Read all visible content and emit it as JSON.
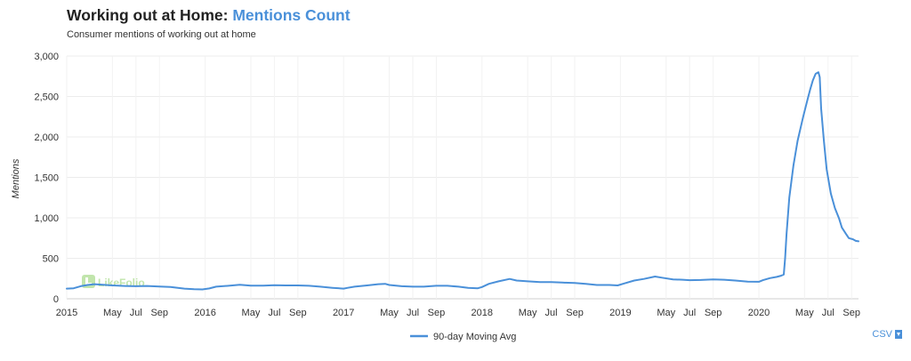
{
  "header": {
    "title_prefix": "Working out at Home: ",
    "title_accent": "Mentions Count",
    "subtitle": "Consumer mentions of working out at home"
  },
  "download": {
    "label": "CSV",
    "icon": "download-icon"
  },
  "watermark": {
    "text": "LikeFolio",
    "color": "#8fd16a"
  },
  "chart_data": {
    "type": "line",
    "ylabel": "Mentions",
    "xlabel": "",
    "ylim": [
      0,
      3000
    ],
    "yticks": [
      0,
      500,
      1000,
      1500,
      2000,
      2500,
      3000
    ],
    "ytick_labels": [
      "0",
      "500",
      "1,000",
      "1,500",
      "2,000",
      "2,500",
      "3,000"
    ],
    "xlim": [
      2015.0,
      2020.72
    ],
    "xticks": [
      {
        "x": 2015.0,
        "label": "2015"
      },
      {
        "x": 2015.33,
        "label": "May"
      },
      {
        "x": 2015.5,
        "label": "Jul"
      },
      {
        "x": 2015.67,
        "label": "Sep"
      },
      {
        "x": 2016.0,
        "label": "2016"
      },
      {
        "x": 2016.33,
        "label": "May"
      },
      {
        "x": 2016.5,
        "label": "Jul"
      },
      {
        "x": 2016.67,
        "label": "Sep"
      },
      {
        "x": 2017.0,
        "label": "2017"
      },
      {
        "x": 2017.33,
        "label": "May"
      },
      {
        "x": 2017.5,
        "label": "Jul"
      },
      {
        "x": 2017.67,
        "label": "Sep"
      },
      {
        "x": 2018.0,
        "label": "2018"
      },
      {
        "x": 2018.33,
        "label": "May"
      },
      {
        "x": 2018.5,
        "label": "Jul"
      },
      {
        "x": 2018.67,
        "label": "Sep"
      },
      {
        "x": 2019.0,
        "label": "2019"
      },
      {
        "x": 2019.33,
        "label": "May"
      },
      {
        "x": 2019.5,
        "label": "Jul"
      },
      {
        "x": 2019.67,
        "label": "Sep"
      },
      {
        "x": 2020.0,
        "label": "2020"
      },
      {
        "x": 2020.33,
        "label": "May"
      },
      {
        "x": 2020.5,
        "label": "Jul"
      },
      {
        "x": 2020.67,
        "label": "Sep"
      }
    ],
    "grid": true,
    "legend": "bottom-center",
    "series": [
      {
        "name": "90-day Moving Avg",
        "color": "#4a90d9",
        "points": [
          [
            2015.0,
            125
          ],
          [
            2015.05,
            130
          ],
          [
            2015.1,
            155
          ],
          [
            2015.15,
            170
          ],
          [
            2015.2,
            180
          ],
          [
            2015.25,
            175
          ],
          [
            2015.33,
            165
          ],
          [
            2015.42,
            158
          ],
          [
            2015.5,
            155
          ],
          [
            2015.58,
            158
          ],
          [
            2015.67,
            152
          ],
          [
            2015.75,
            145
          ],
          [
            2015.85,
            125
          ],
          [
            2015.92,
            118
          ],
          [
            2015.98,
            115
          ],
          [
            2016.03,
            128
          ],
          [
            2016.08,
            150
          ],
          [
            2016.17,
            160
          ],
          [
            2016.25,
            172
          ],
          [
            2016.33,
            162
          ],
          [
            2016.42,
            162
          ],
          [
            2016.5,
            168
          ],
          [
            2016.58,
            165
          ],
          [
            2016.67,
            165
          ],
          [
            2016.75,
            160
          ],
          [
            2016.83,
            150
          ],
          [
            2016.92,
            135
          ],
          [
            2017.0,
            125
          ],
          [
            2017.03,
            135
          ],
          [
            2017.08,
            150
          ],
          [
            2017.17,
            165
          ],
          [
            2017.25,
            180
          ],
          [
            2017.3,
            185
          ],
          [
            2017.33,
            170
          ],
          [
            2017.42,
            155
          ],
          [
            2017.5,
            150
          ],
          [
            2017.58,
            150
          ],
          [
            2017.67,
            160
          ],
          [
            2017.75,
            160
          ],
          [
            2017.83,
            150
          ],
          [
            2017.9,
            135
          ],
          [
            2017.97,
            130
          ],
          [
            2018.0,
            145
          ],
          [
            2018.05,
            185
          ],
          [
            2018.12,
            215
          ],
          [
            2018.2,
            245
          ],
          [
            2018.25,
            225
          ],
          [
            2018.33,
            215
          ],
          [
            2018.42,
            205
          ],
          [
            2018.5,
            205
          ],
          [
            2018.58,
            200
          ],
          [
            2018.67,
            195
          ],
          [
            2018.75,
            185
          ],
          [
            2018.83,
            170
          ],
          [
            2018.92,
            170
          ],
          [
            2018.98,
            165
          ],
          [
            2019.03,
            190
          ],
          [
            2019.1,
            225
          ],
          [
            2019.17,
            245
          ],
          [
            2019.25,
            275
          ],
          [
            2019.3,
            260
          ],
          [
            2019.38,
            240
          ],
          [
            2019.45,
            235
          ],
          [
            2019.5,
            230
          ],
          [
            2019.58,
            232
          ],
          [
            2019.67,
            240
          ],
          [
            2019.75,
            235
          ],
          [
            2019.83,
            225
          ],
          [
            2019.92,
            212
          ],
          [
            2020.0,
            210
          ],
          [
            2020.03,
            230
          ],
          [
            2020.08,
            255
          ],
          [
            2020.13,
            270
          ],
          [
            2020.16,
            285
          ],
          [
            2020.18,
            300
          ],
          [
            2020.19,
            500
          ],
          [
            2020.2,
            800
          ],
          [
            2020.22,
            1250
          ],
          [
            2020.25,
            1650
          ],
          [
            2020.28,
            1950
          ],
          [
            2020.32,
            2250
          ],
          [
            2020.35,
            2450
          ],
          [
            2020.37,
            2580
          ],
          [
            2020.39,
            2700
          ],
          [
            2020.41,
            2780
          ],
          [
            2020.43,
            2800
          ],
          [
            2020.44,
            2740
          ],
          [
            2020.45,
            2350
          ],
          [
            2020.47,
            1950
          ],
          [
            2020.49,
            1600
          ],
          [
            2020.52,
            1300
          ],
          [
            2020.55,
            1120
          ],
          [
            2020.58,
            990
          ],
          [
            2020.6,
            880
          ],
          [
            2020.63,
            800
          ],
          [
            2020.65,
            750
          ],
          [
            2020.68,
            735
          ],
          [
            2020.7,
            715
          ],
          [
            2020.72,
            710
          ]
        ]
      }
    ]
  }
}
